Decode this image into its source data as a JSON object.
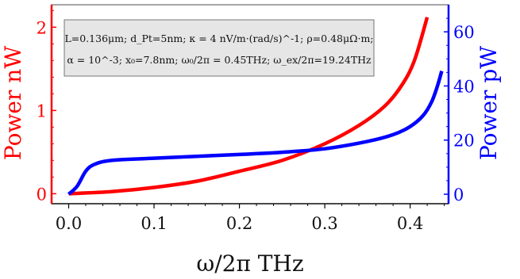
{
  "chart_data": {
    "type": "line",
    "xlabel": "ω/2π THz",
    "ylabel_left": "Power nW",
    "ylabel_right": "Power pW",
    "xlim": [
      -0.02,
      0.445
    ],
    "ylim_left": [
      -0.12,
      2.27
    ],
    "ylim_right": [
      -3.5,
      70
    ],
    "x_ticks": [
      "0.0",
      "0.1",
      "0.2",
      "0.3",
      "0.4"
    ],
    "x_tick_values": [
      0.0,
      0.1,
      0.2,
      0.3,
      0.4
    ],
    "y_left_ticks": [
      "0",
      "1",
      "2"
    ],
    "y_left_tick_values": [
      0,
      1,
      2
    ],
    "y_right_ticks": [
      "0",
      "20",
      "40",
      "60"
    ],
    "y_right_tick_values": [
      0,
      20,
      40,
      60
    ],
    "annotation_line1": "L=0.136μm; d_Pt=5nm; κ = 4 nV/m·(rad/s)^-1; ρ=0.48μΩ·m;",
    "annotation_line2": "α = 10^-3; x₀=7.8nm; ω₀/2π = 0.45THz; ω_ex/2π=19.24THz",
    "series": [
      {
        "axis": "left",
        "color": "#ff0000",
        "x": [
          0.0,
          0.05,
          0.1,
          0.15,
          0.2,
          0.25,
          0.3,
          0.34,
          0.37,
          0.39,
          0.405,
          0.42
        ],
        "y": [
          0.0,
          0.025,
          0.075,
          0.15,
          0.27,
          0.4,
          0.6,
          0.82,
          1.05,
          1.3,
          1.6,
          2.12
        ]
      },
      {
        "axis": "right",
        "color": "#0000ff",
        "x": [
          0.0,
          0.01,
          0.02,
          0.03,
          0.05,
          0.1,
          0.15,
          0.2,
          0.25,
          0.3,
          0.35,
          0.38,
          0.4,
          0.415,
          0.425,
          0.432,
          0.437
        ],
        "y": [
          0.0,
          3.0,
          8.5,
          11.0,
          12.5,
          13.3,
          14.0,
          14.7,
          15.5,
          16.8,
          19.5,
          22.0,
          25.0,
          29.0,
          34.0,
          40.0,
          45.5
        ]
      }
    ]
  }
}
